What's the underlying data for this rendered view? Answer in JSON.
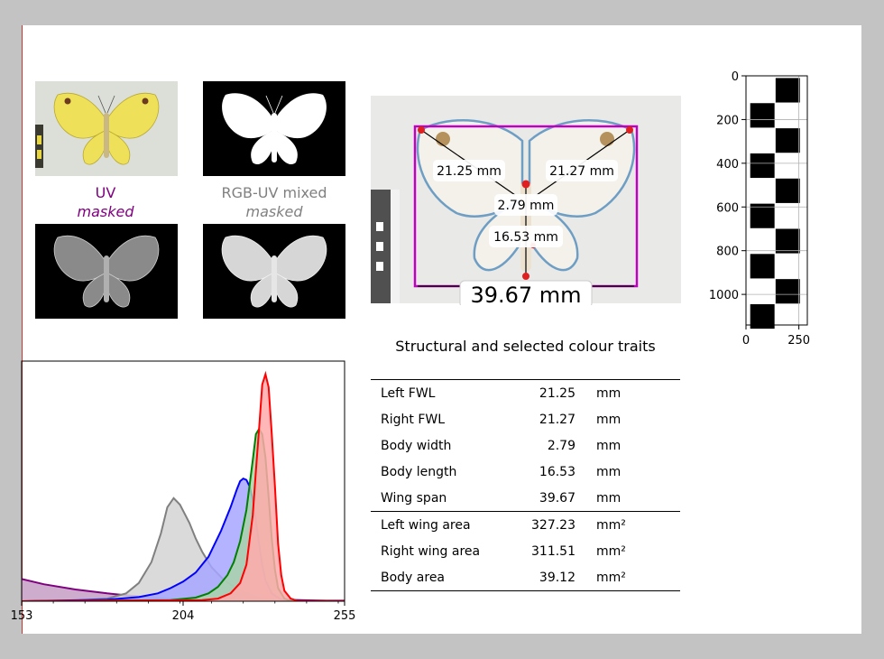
{
  "panels": {
    "uv_label": "UV",
    "uv_sub": "masked",
    "mixed_label": "RGB-UV mixed",
    "mixed_sub": "masked",
    "uv_color": "#800080",
    "mixed_color": "#808080"
  },
  "measurements": {
    "left_fwl": "21.25 mm",
    "right_fwl": "21.27 mm",
    "body_width": "2.79 mm",
    "body_length": "16.53 mm",
    "wing_span": "39.67 mm"
  },
  "table": {
    "title": "Structural and selected colour traits",
    "rows": [
      {
        "label": "Left FWL",
        "value": "21.25",
        "unit": "mm"
      },
      {
        "label": "Right FWL",
        "value": "21.27",
        "unit": "mm"
      },
      {
        "label": "Body width",
        "value": "2.79",
        "unit": "mm"
      },
      {
        "label": "Body length",
        "value": "16.53",
        "unit": "mm"
      },
      {
        "label": "Wing span",
        "value": "39.67",
        "unit": "mm"
      },
      {
        "label": "Left wing area",
        "value": "327.23",
        "unit": "mm²"
      },
      {
        "label": "Right wing area",
        "value": "311.51",
        "unit": "mm²"
      },
      {
        "label": "Body area",
        "value": "39.12",
        "unit": "mm²"
      }
    ]
  },
  "chart_data": [
    {
      "type": "area",
      "xlim": [
        153,
        255
      ],
      "x_ticks": [
        "153",
        "204",
        "255"
      ],
      "x_tick_values": [
        153,
        204,
        255
      ],
      "series": [
        {
          "color": "#800080",
          "fill": "#c49ec4",
          "x": [
            153,
            160,
            170,
            180,
            190,
            200,
            210,
            220,
            230,
            240,
            255
          ],
          "y": [
            0.085,
            0.065,
            0.045,
            0.03,
            0.018,
            0.01,
            0.006,
            0.004,
            0.003,
            0.002,
            0.002
          ]
        },
        {
          "color": "#808080",
          "fill": "#d3d3d3",
          "x": [
            153,
            170,
            180,
            186,
            190,
            194,
            197,
            199,
            201,
            203,
            206,
            208,
            210,
            213,
            217,
            222,
            228,
            232,
            236,
            240,
            255
          ],
          "y": [
            0,
            0.003,
            0.01,
            0.03,
            0.07,
            0.15,
            0.26,
            0.36,
            0.395,
            0.37,
            0.3,
            0.24,
            0.19,
            0.13,
            0.08,
            0.04,
            0.012,
            0.004,
            0.001,
            0,
            0
          ]
        },
        {
          "color": "#0000ff",
          "fill": "#a6a6ff",
          "x": [
            153,
            180,
            190,
            196,
            200,
            204,
            208,
            212,
            216,
            219,
            221,
            222,
            223,
            224,
            225,
            226,
            227,
            228,
            229,
            230,
            232,
            235,
            255
          ],
          "y": [
            0,
            0.006,
            0.016,
            0.03,
            0.05,
            0.075,
            0.11,
            0.17,
            0.27,
            0.36,
            0.43,
            0.46,
            0.47,
            0.465,
            0.44,
            0.39,
            0.31,
            0.22,
            0.14,
            0.08,
            0.03,
            0.006,
            0
          ]
        },
        {
          "color": "#008000",
          "fill": "#a9d3a9",
          "x": [
            153,
            200,
            208,
            212,
            215,
            218,
            220,
            222,
            224,
            226,
            227,
            228,
            229,
            230,
            231,
            232,
            233,
            234,
            236,
            238,
            255
          ],
          "y": [
            0,
            0.004,
            0.014,
            0.03,
            0.055,
            0.1,
            0.15,
            0.23,
            0.35,
            0.54,
            0.64,
            0.66,
            0.64,
            0.55,
            0.4,
            0.24,
            0.12,
            0.05,
            0.01,
            0.002,
            0
          ]
        },
        {
          "color": "#ff0000",
          "fill": "#ffaaaa",
          "x": [
            153,
            210,
            215,
            219,
            222,
            224,
            226,
            227,
            228,
            229,
            230,
            231,
            232,
            233,
            234,
            235,
            236,
            238,
            240,
            255
          ],
          "y": [
            0,
            0.004,
            0.01,
            0.03,
            0.07,
            0.14,
            0.33,
            0.5,
            0.66,
            0.83,
            0.87,
            0.82,
            0.64,
            0.44,
            0.22,
            0.1,
            0.04,
            0.01,
            0.002,
            0
          ]
        }
      ]
    },
    {
      "type": "heatmap",
      "x_ticks": [
        "0",
        "250"
      ],
      "x_tick_values": [
        0,
        250
      ],
      "y_ticks": [
        "0",
        "200",
        "400",
        "600",
        "800",
        "1000"
      ],
      "y_tick_values": [
        0,
        200,
        400,
        600,
        800,
        1000
      ],
      "xlim": [
        0,
        290
      ],
      "ylim": [
        0,
        1140
      ],
      "grid": true
    }
  ]
}
